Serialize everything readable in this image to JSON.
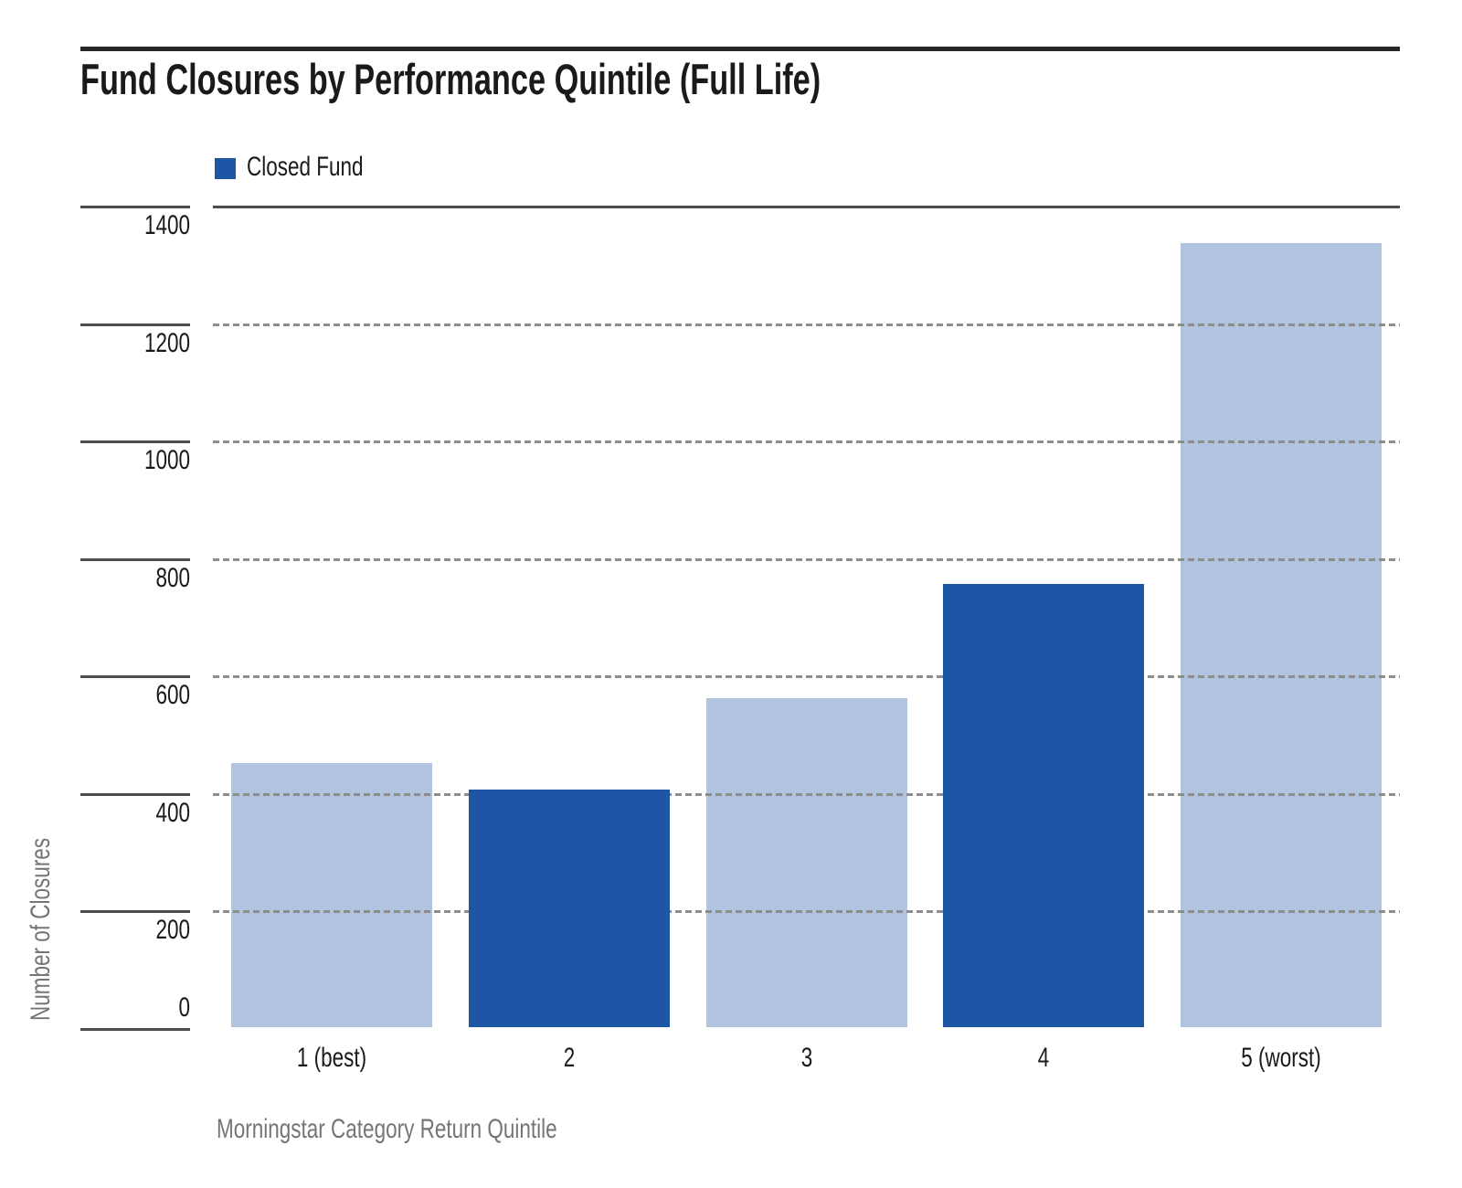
{
  "chart_data": {
    "type": "bar",
    "title": "Fund Closures by Performance Quintile (Full Life)",
    "categories": [
      "1 (best)",
      "2",
      "3",
      "4",
      "5 (worst)"
    ],
    "values": [
      450,
      404,
      560,
      755,
      1334
    ],
    "bar_colors": [
      "#B0C4DF",
      "#1F55A5",
      "#B0C4DF",
      "#1F55A5",
      "#B0C4DF"
    ],
    "xlabel": "Morningstar Category Return Quintile",
    "ylabel": "Number of Closures",
    "ylim": [
      0,
      1400
    ],
    "yticks": [
      0,
      200,
      400,
      600,
      800,
      1000,
      1200,
      1400
    ],
    "grid": "horizontal-dashed",
    "legend": [
      {
        "label": "Closed Fund",
        "color": "#1F55A5"
      }
    ],
    "legend_position": "top-left"
  },
  "colors": {
    "accent_dark_blue": "#1F55A5",
    "accent_light_blue": "#B0C4DF",
    "title_rule": "#262626",
    "axis_line": "#4D4D4D",
    "grid_dash": "#8C8C8C",
    "text_primary": "#1A1A1A",
    "text_secondary": "#757575"
  }
}
